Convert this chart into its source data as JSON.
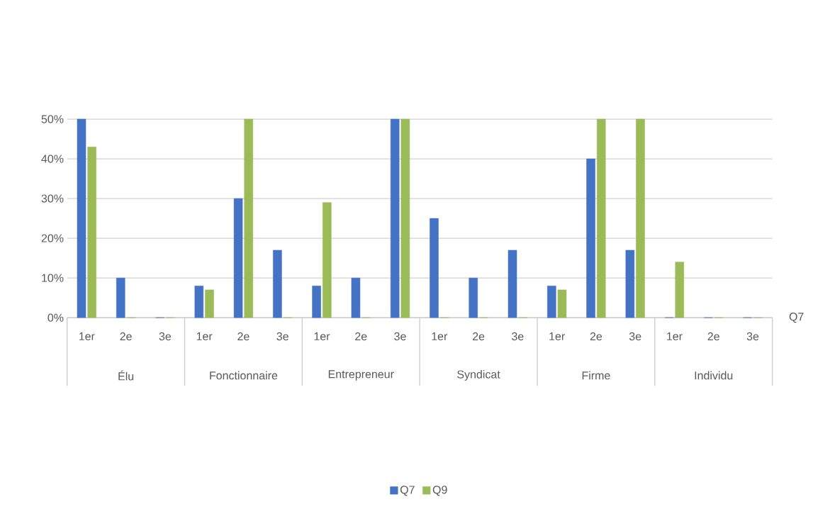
{
  "chart_data": {
    "type": "bar",
    "categories": [
      "1er",
      "2e",
      "3e",
      "1er",
      "2e",
      "3e",
      "1er",
      "2e",
      "3e",
      "1er",
      "2e",
      "3e",
      "1er",
      "2e",
      "3e",
      "1er",
      "2e",
      "3e"
    ],
    "series": [
      {
        "name": "Q7",
        "color": "#4472c4",
        "values": [
          50,
          10,
          0,
          8,
          30,
          17,
          8,
          10,
          50,
          25,
          10,
          17,
          8,
          40,
          17,
          0,
          0,
          0
        ]
      },
      {
        "name": "Q9",
        "color": "#9bbb59",
        "values": [
          43,
          0,
          0,
          7,
          50,
          0,
          29,
          0,
          50,
          0,
          0,
          0,
          7,
          50,
          50,
          14,
          0,
          0
        ]
      }
    ],
    "ylim": [
      0,
      50
    ],
    "yticks": [
      {
        "value": 0,
        "label": "0%"
      },
      {
        "value": 10,
        "label": "10%"
      },
      {
        "value": 20,
        "label": "20%"
      },
      {
        "value": 30,
        "label": "30%"
      },
      {
        "value": 40,
        "label": "40%"
      },
      {
        "value": 50,
        "label": "50%"
      }
    ],
    "grid": "y",
    "legend": "bottom",
    "annotations": [
      "Élu",
      "Fonctionnaire",
      "Entrepreneur",
      "Syndicat",
      "Firme",
      "Individu",
      "Q7"
    ]
  }
}
